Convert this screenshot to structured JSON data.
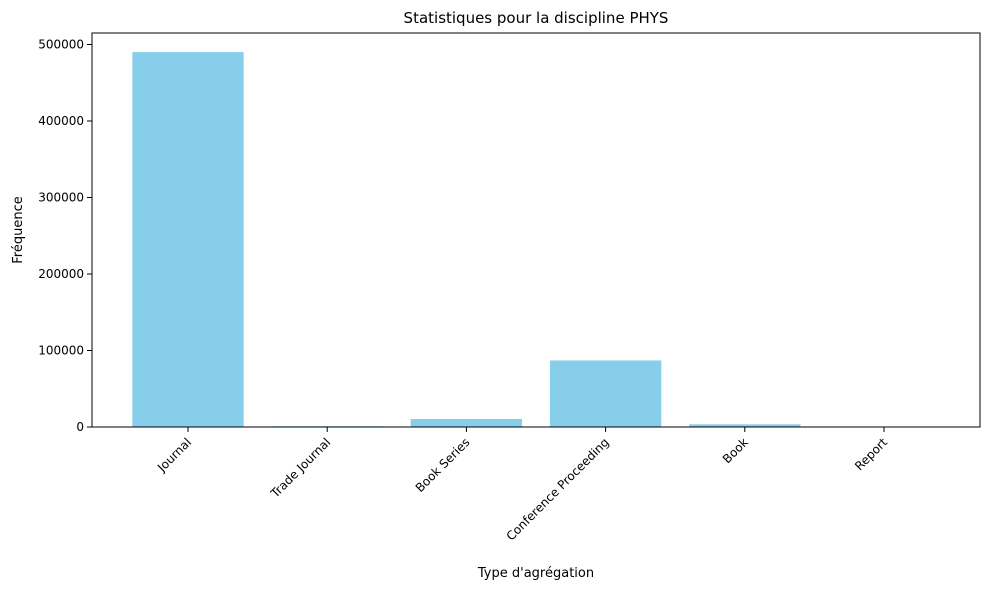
{
  "chart_data": {
    "type": "bar",
    "title": "Statistiques pour la discipline PHYS",
    "xlabel": "Type d'agrégation",
    "ylabel": "Fréquence",
    "categories": [
      "Journal",
      "Trade Journal",
      "Book Series",
      "Conference Proceeding",
      "Book",
      "Report"
    ],
    "values": [
      490000,
      1000,
      10500,
      87000,
      3500,
      100
    ],
    "ylim": [
      0,
      515000
    ],
    "yticks": [
      0,
      100000,
      200000,
      300000,
      400000,
      500000
    ],
    "ytick_labels": [
      "0",
      "100000",
      "200000",
      "300000",
      "400000",
      "500000"
    ],
    "bar_color": "#87ceeb",
    "grid": false,
    "legend": "none"
  }
}
